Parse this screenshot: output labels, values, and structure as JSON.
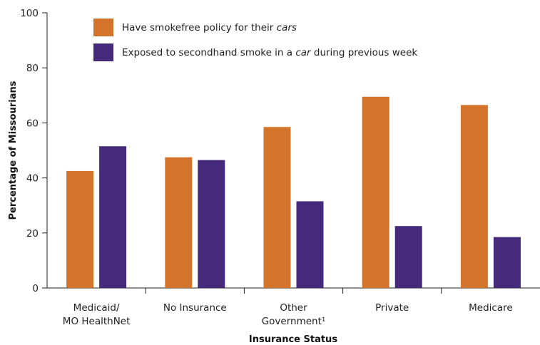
{
  "chart_data": {
    "type": "bar",
    "categories": [
      [
        "Medicaid/",
        "MO HealthNet"
      ],
      [
        "No Insurance"
      ],
      [
        "Other",
        "Government¹"
      ],
      [
        "Private"
      ],
      [
        "Medicare"
      ]
    ],
    "series": [
      {
        "name": [
          "Have smokefree policy for their ",
          "cars"
        ],
        "color": "#d4742b",
        "values": [
          42.5,
          47.5,
          58.5,
          69.5,
          66.5
        ]
      },
      {
        "name": [
          "Exposed to secondhand smoke in a ",
          "car",
          " during previous week"
        ],
        "color": "#45297a",
        "values": [
          51.5,
          46.5,
          31.5,
          22.5,
          18.5
        ]
      }
    ],
    "xlabel": "Insurance Status",
    "ylabel": "Percentage of Missourians",
    "ylim": [
      0,
      100
    ],
    "yticks": [
      0,
      20,
      40,
      60,
      80,
      100
    ],
    "grid": false,
    "legend": "top-left"
  }
}
